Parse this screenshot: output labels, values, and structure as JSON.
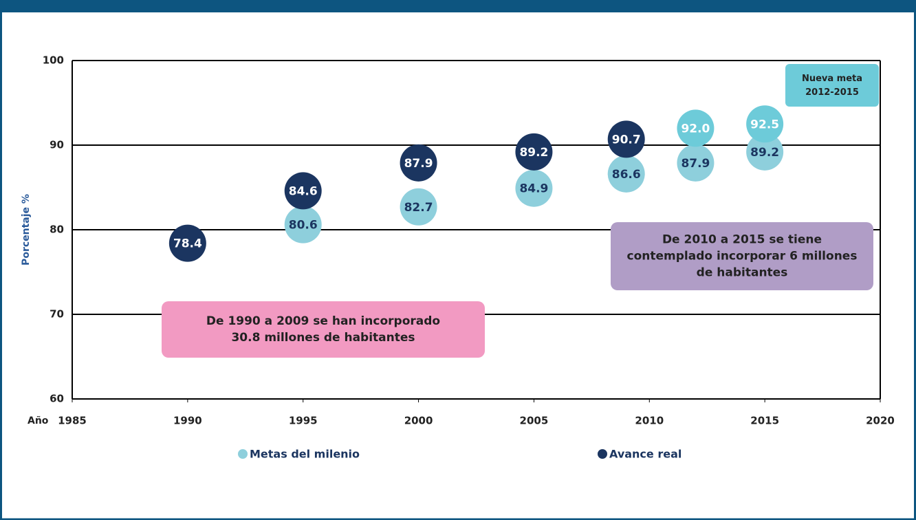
{
  "chart_data": {
    "type": "scatter",
    "xlabel": "Año",
    "ylabel": "Porcentaje %",
    "xlim": [
      1985,
      2020
    ],
    "xticks": [
      1985,
      1990,
      1995,
      2000,
      2005,
      2010,
      2015,
      2020
    ],
    "ylim": [
      60,
      100
    ],
    "yticks": [
      60,
      70,
      80,
      90,
      100
    ],
    "grid": true,
    "legend": "bottom",
    "series": [
      {
        "name": "Metas del milenio",
        "color": "#8ecfdc",
        "text_color": "#1b3560",
        "legend": true,
        "x": [
          1995,
          2000,
          2005,
          2009,
          2012,
          2015
        ],
        "values": [
          80.6,
          82.7,
          84.9,
          86.6,
          87.9,
          89.2
        ]
      },
      {
        "name": "Avance real",
        "color": "#1b3560",
        "text_color": "#ffffff",
        "legend": true,
        "x": [
          1990,
          1995,
          2000,
          2005,
          2009
        ],
        "values": [
          78.4,
          84.6,
          87.9,
          89.2,
          90.7
        ]
      },
      {
        "name": "Nueva meta 2012-2015",
        "color": "#6dcbd9",
        "text_color": "#ffffff",
        "legend": false,
        "x": [
          2012,
          2015
        ],
        "values": [
          92,
          92.5
        ],
        "value_labels": [
          "92.0",
          "92.5"
        ]
      }
    ],
    "annotations": [
      {
        "lines": [
          "De 1990 a 2009 se han incorporado",
          "30.8 millones de habitantes"
        ],
        "color": "#f29ac2"
      },
      {
        "lines": [
          "De 2010 a 2015 se tiene",
          "contemplado incorporar 6 millones",
          "de habitantes"
        ],
        "color": "#b09dc6"
      }
    ]
  }
}
